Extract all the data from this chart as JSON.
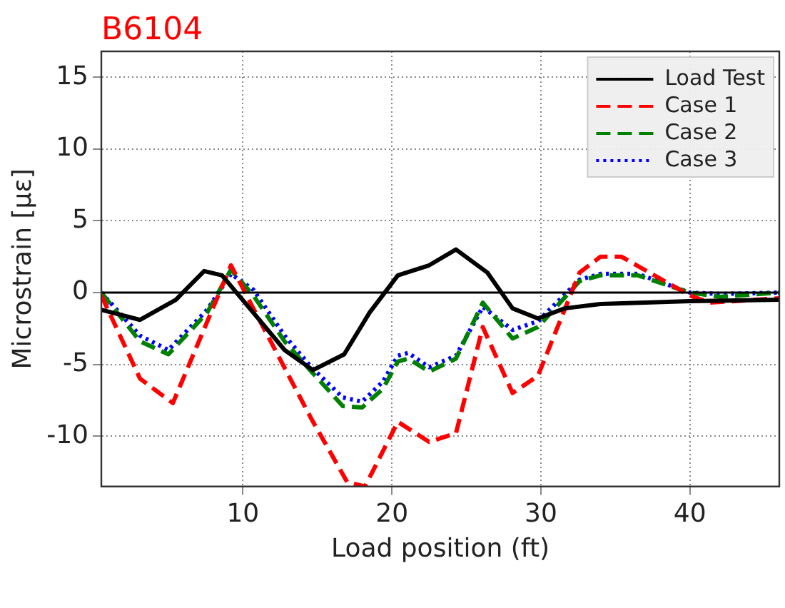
{
  "chart_data": {
    "type": "line",
    "title": "B6104",
    "xlabel": "Load position (ft)",
    "ylabel": "Microstrain [με]",
    "xlim": [
      0.5,
      46
    ],
    "ylim": [
      -13.5,
      16.8
    ],
    "xticks": [
      10,
      20,
      30,
      40
    ],
    "yticks": [
      -10,
      -5,
      0,
      5,
      10,
      15
    ],
    "grid": true,
    "legend": "top right",
    "marker": "none",
    "ref_lines": [
      {
        "axis": "y",
        "value": 0,
        "color": "#000000"
      }
    ],
    "series": [
      {
        "name": "Load Test",
        "color": "#000000",
        "line_style": "solid",
        "x": [
          0.5,
          3.1,
          5.5,
          7.4,
          8.6,
          10.7,
          12.8,
          14.7,
          16.8,
          18.5,
          20.4,
          22.5,
          24.3,
          26.4,
          28.1,
          29.8,
          31.6,
          34,
          40,
          46
        ],
        "values": [
          -1.2,
          -1.9,
          -0.5,
          1.5,
          1.2,
          -1.4,
          -4,
          -5.4,
          -4.3,
          -1.4,
          1.2,
          1.9,
          3,
          1.4,
          -1.1,
          -1.8,
          -1.1,
          -0.8,
          -0.6,
          -0.5
        ]
      },
      {
        "name": "Case 1",
        "color": "#ff0000",
        "line_style": "dashed",
        "x": [
          0.5,
          3.1,
          5.3,
          9.2,
          10.7,
          14.6,
          17,
          18.2,
          20.4,
          22.5,
          24.3,
          26.1,
          28.1,
          29.8,
          32.6,
          34,
          35.4,
          40,
          41.3,
          46
        ],
        "values": [
          -0.2,
          -6,
          -7.7,
          1.9,
          -1.1,
          -8.8,
          -13.2,
          -13.5,
          -9,
          -10.4,
          -9.8,
          -2.4,
          -7,
          -5.8,
          1.4,
          2.5,
          2.5,
          -0.2,
          -0.7,
          -0.4
        ]
      },
      {
        "name": "Case 2",
        "color": "#008000",
        "line_style": "dashed",
        "x": [
          0.5,
          3.1,
          5,
          7.6,
          9.2,
          10.7,
          12.8,
          14.6,
          16.7,
          18,
          19.4,
          20.4,
          21.1,
          22.5,
          24.3,
          26.1,
          28.1,
          29.8,
          32.6,
          34,
          36.5,
          40,
          42,
          46
        ],
        "values": [
          0,
          -3.4,
          -4.3,
          -1.4,
          1.6,
          -0.2,
          -3.4,
          -5.5,
          -7.9,
          -8,
          -6.7,
          -4.8,
          -4.6,
          -5.5,
          -4.6,
          -0.7,
          -3.2,
          -2.4,
          0.8,
          1.2,
          1.2,
          0,
          -0.3,
          0
        ]
      },
      {
        "name": "Case 3",
        "color": "#0000ff",
        "line_style": "dotted",
        "x": [
          0.5,
          3.1,
          5,
          7.6,
          9.2,
          10.7,
          12.8,
          14.6,
          16.7,
          18,
          19.4,
          20.4,
          21.1,
          22.5,
          24.3,
          26.1,
          28.1,
          29.8,
          32.6,
          34,
          36.5,
          40,
          42,
          46
        ],
        "values": [
          0,
          -3,
          -4,
          -1.2,
          1.3,
          0.2,
          -3,
          -5.2,
          -7.3,
          -7.6,
          -6.2,
          -4.4,
          -4.2,
          -5.2,
          -4.4,
          -1,
          -2.6,
          -2,
          0.9,
          1.3,
          1.3,
          0,
          -0.1,
          0
        ]
      }
    ]
  }
}
